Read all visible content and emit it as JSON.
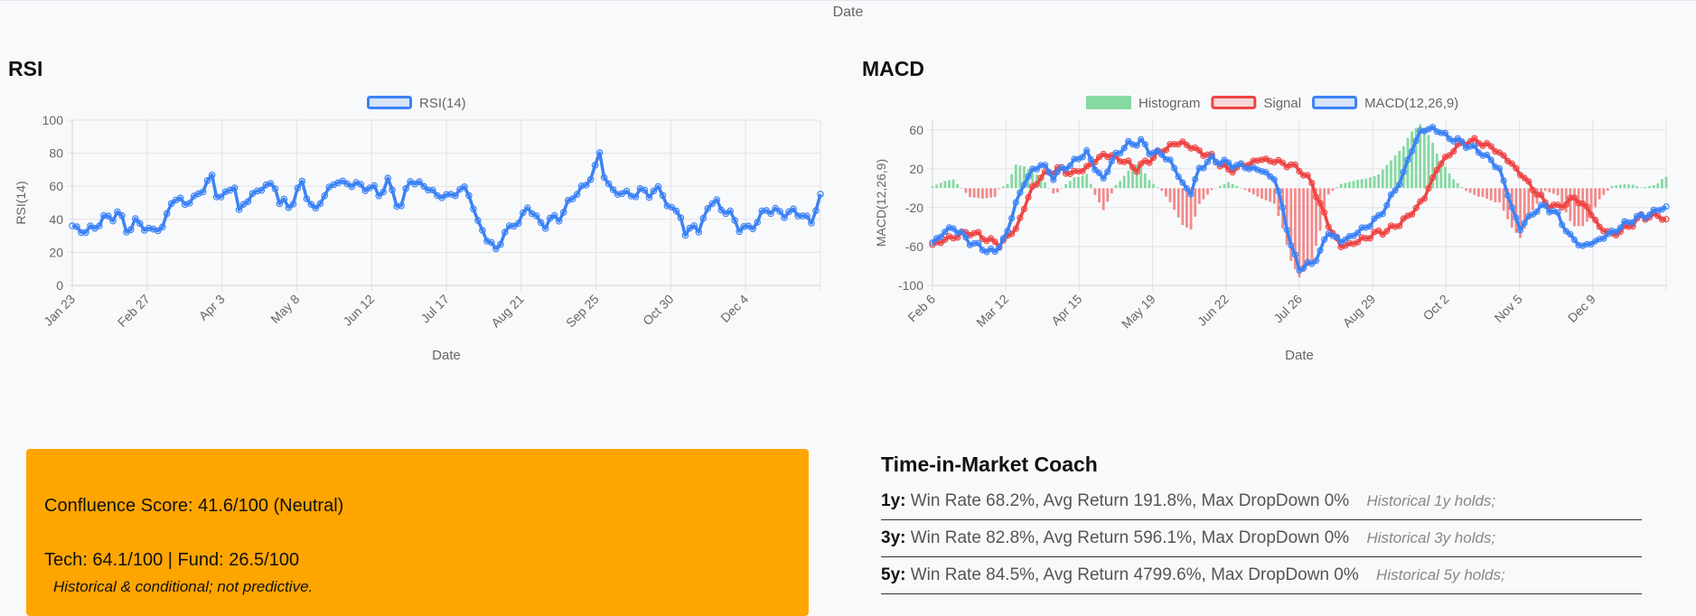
{
  "header": {
    "axis_label": "Date"
  },
  "rsi": {
    "title": "RSI",
    "chart_data": {
      "type": "line",
      "title": "RSI",
      "xlabel": "Date",
      "ylabel": "RSI(14)",
      "ylim": [
        0,
        100
      ],
      "yticks": [
        0,
        20,
        40,
        60,
        80,
        100
      ],
      "grid": true,
      "legend": "top",
      "xtick_labels": [
        "Jan 23",
        "Feb 27",
        "Apr 3",
        "May 8",
        "Jun 12",
        "Jul 17",
        "Aug 21",
        "Sep 25",
        "Oct 30",
        "Dec 4"
      ],
      "series": [
        {
          "name": "RSI(14)",
          "color": "#3b82f6",
          "anchors": [
            [
              0,
              36
            ],
            [
              3,
              32
            ],
            [
              6,
              38
            ],
            [
              10,
              44
            ],
            [
              12,
              34
            ],
            [
              14,
              38
            ],
            [
              18,
              33
            ],
            [
              20,
              35
            ],
            [
              22,
              51
            ],
            [
              27,
              51
            ],
            [
              29,
              60
            ],
            [
              31,
              64
            ],
            [
              32,
              56
            ],
            [
              34,
              54
            ],
            [
              36,
              61
            ],
            [
              37,
              45
            ],
            [
              40,
              55
            ],
            [
              42,
              59
            ],
            [
              45,
              61
            ],
            [
              46,
              50
            ],
            [
              48,
              48
            ],
            [
              51,
              61
            ],
            [
              54,
              44
            ],
            [
              56,
              56
            ],
            [
              59,
              63
            ],
            [
              62,
              61
            ],
            [
              65,
              60
            ],
            [
              68,
              56
            ],
            [
              70,
              62
            ],
            [
              72,
              51
            ],
            [
              73,
              48
            ],
            [
              75,
              64
            ],
            [
              78,
              60
            ],
            [
              81,
              55
            ],
            [
              83,
              53
            ],
            [
              85,
              57
            ],
            [
              88,
              57
            ],
            [
              89,
              48
            ],
            [
              90,
              36
            ],
            [
              92,
              30
            ],
            [
              94,
              20
            ],
            [
              96,
              33
            ],
            [
              99,
              38
            ],
            [
              101,
              48
            ],
            [
              103,
              40
            ],
            [
              105,
              37
            ],
            [
              108,
              42
            ],
            [
              110,
              48
            ],
            [
              112,
              58
            ],
            [
              114,
              59
            ],
            [
              116,
              73
            ],
            [
              117,
              79
            ],
            [
              118,
              66
            ],
            [
              120,
              57
            ],
            [
              123,
              55
            ],
            [
              126,
              56
            ],
            [
              129,
              57
            ],
            [
              131,
              56
            ],
            [
              133,
              45
            ],
            [
              135,
              43
            ],
            [
              136,
              30
            ],
            [
              138,
              37
            ],
            [
              139,
              32
            ],
            [
              141,
              48
            ],
            [
              143,
              50
            ],
            [
              145,
              45
            ],
            [
              147,
              39
            ],
            [
              148,
              36
            ],
            [
              150,
              33
            ],
            [
              152,
              40
            ],
            [
              154,
              45
            ],
            [
              156,
              46
            ],
            [
              158,
              42
            ],
            [
              160,
              46
            ],
            [
              162,
              41
            ],
            [
              164,
              40
            ],
            [
              165,
              46
            ],
            [
              166,
              52
            ]
          ]
        }
      ]
    }
  },
  "macd": {
    "title": "MACD",
    "chart_data": {
      "type": "line",
      "title": "MACD",
      "xlabel": "Date",
      "ylabel": "MACD(12,26,9)",
      "ylim": [
        -100,
        70
      ],
      "yticks": [
        -100,
        -60,
        -20,
        20,
        60
      ],
      "grid": true,
      "legend": "top",
      "xtick_labels": [
        "Feb 6",
        "Mar 12",
        "Apr 15",
        "May 19",
        "Jun 22",
        "Jul 26",
        "Aug 29",
        "Oct 2",
        "Nov 5",
        "Dec 9"
      ],
      "series": [
        {
          "name": "Histogram",
          "type": "bar",
          "color": "#86d9a1",
          "negative_color": "#f28b8b"
        },
        {
          "name": "Signal",
          "color": "#ef4444",
          "anchors": [
            [
              0,
              -58
            ],
            [
              5,
              -50
            ],
            [
              9,
              -45
            ],
            [
              13,
              -52
            ],
            [
              16,
              -58
            ],
            [
              20,
              -42
            ],
            [
              22,
              -20
            ],
            [
              24,
              0
            ],
            [
              26,
              12
            ],
            [
              30,
              20
            ],
            [
              34,
              15
            ],
            [
              38,
              24
            ],
            [
              41,
              35
            ],
            [
              45,
              30
            ],
            [
              49,
              20
            ],
            [
              53,
              32
            ],
            [
              57,
              44
            ],
            [
              60,
              47
            ],
            [
              63,
              40
            ],
            [
              67,
              32
            ],
            [
              71,
              18
            ],
            [
              75,
              24
            ],
            [
              79,
              30
            ],
            [
              84,
              26
            ],
            [
              88,
              20
            ],
            [
              91,
              5
            ],
            [
              95,
              -38
            ],
            [
              98,
              -60
            ],
            [
              102,
              -55
            ],
            [
              106,
              -47
            ],
            [
              110,
              -42
            ],
            [
              114,
              -30
            ],
            [
              118,
              -10
            ],
            [
              121,
              20
            ],
            [
              125,
              40
            ],
            [
              128,
              48
            ],
            [
              131,
              48
            ],
            [
              135,
              40
            ],
            [
              139,
              25
            ],
            [
              143,
              5
            ],
            [
              147,
              -15
            ],
            [
              150,
              -20
            ],
            [
              154,
              -10
            ],
            [
              157,
              -20
            ],
            [
              160,
              -40
            ],
            [
              163,
              -48
            ],
            [
              166,
              -42
            ],
            [
              170,
              -30
            ],
            [
              174,
              -28
            ],
            [
              176,
              -33
            ]
          ]
        },
        {
          "name": "MACD(12,26,9)",
          "color": "#3b82f6",
          "anchors": [
            [
              0,
              -56
            ],
            [
              3,
              -45
            ],
            [
              5,
              -40
            ],
            [
              7,
              -48
            ],
            [
              9,
              -55
            ],
            [
              12,
              -62
            ],
            [
              15,
              -66
            ],
            [
              18,
              -45
            ],
            [
              20,
              -15
            ],
            [
              22,
              5
            ],
            [
              24,
              18
            ],
            [
              26,
              25
            ],
            [
              29,
              12
            ],
            [
              32,
              22
            ],
            [
              35,
              30
            ],
            [
              37,
              38
            ],
            [
              39,
              20
            ],
            [
              41,
              10
            ],
            [
              44,
              35
            ],
            [
              47,
              45
            ],
            [
              50,
              48
            ],
            [
              52,
              38
            ],
            [
              55,
              35
            ],
            [
              57,
              28
            ],
            [
              60,
              5
            ],
            [
              62,
              -5
            ],
            [
              64,
              20
            ],
            [
              67,
              30
            ],
            [
              71,
              25
            ],
            [
              75,
              22
            ],
            [
              79,
              18
            ],
            [
              82,
              10
            ],
            [
              84,
              -20
            ],
            [
              86,
              -60
            ],
            [
              88,
              -82
            ],
            [
              91,
              -78
            ],
            [
              93,
              -65
            ],
            [
              95,
              -45
            ],
            [
              98,
              -55
            ],
            [
              101,
              -48
            ],
            [
              104,
              -40
            ],
            [
              107,
              -30
            ],
            [
              110,
              -10
            ],
            [
              113,
              15
            ],
            [
              115,
              40
            ],
            [
              117,
              58
            ],
            [
              120,
              62
            ],
            [
              124,
              52
            ],
            [
              128,
              45
            ],
            [
              132,
              36
            ],
            [
              136,
              20
            ],
            [
              139,
              -20
            ],
            [
              141,
              -42
            ],
            [
              144,
              -25
            ],
            [
              147,
              -18
            ],
            [
              150,
              -28
            ],
            [
              153,
              -50
            ],
            [
              156,
              -60
            ],
            [
              159,
              -55
            ],
            [
              162,
              -48
            ],
            [
              165,
              -40
            ],
            [
              168,
              -32
            ],
            [
              171,
              -28
            ],
            [
              173,
              -25
            ],
            [
              175,
              -20
            ]
          ]
        }
      ]
    }
  },
  "confluence": {
    "score_text": "Confluence Score: 41.6/100 (Neutral)",
    "tech_text": "Tech: 64.1/100 | Fund: 26.5/100",
    "note": "Historical & conditional; not predictive.",
    "background": "#ffa500"
  },
  "coach": {
    "title": "Time-in-Market Coach",
    "rows": [
      {
        "horizon": "1y:",
        "metrics": "Win Rate 68.2%, Avg Return 191.8%, Max DropDown 0%",
        "note": "Historical 1y holds;"
      },
      {
        "horizon": "3y:",
        "metrics": "Win Rate 82.8%, Avg Return 596.1%, Max DropDown 0%",
        "note": "Historical 3y holds;"
      },
      {
        "horizon": "5y:",
        "metrics": "Win Rate 84.5%, Avg Return 4799.6%, Max DropDown 0%",
        "note": "Historical 5y holds;"
      }
    ]
  }
}
